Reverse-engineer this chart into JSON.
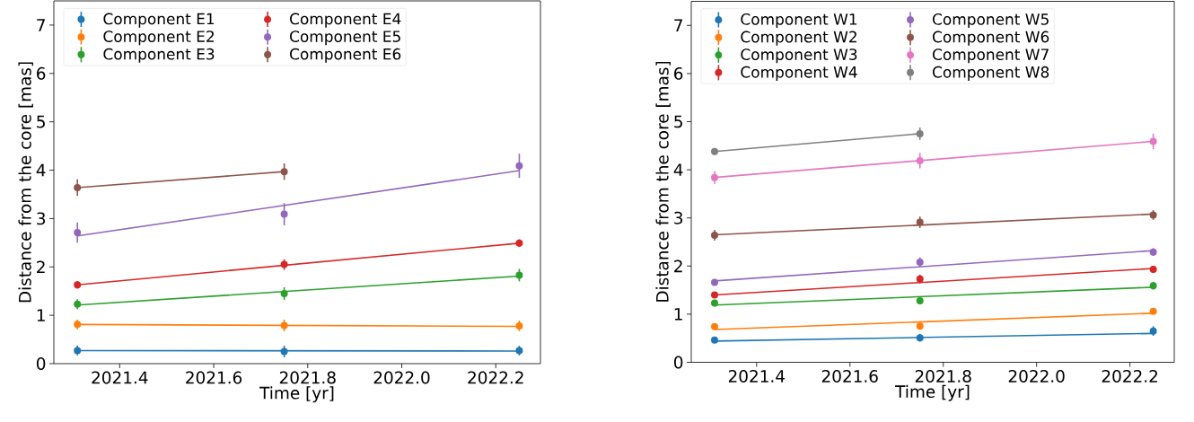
{
  "chart_data": [
    {
      "type": "scatter",
      "xlabel": "Time [yr]",
      "ylabel": "Distance from the core [mas]",
      "xlim": [
        2021.26,
        2022.295
      ],
      "ylim": [
        0,
        7.5
      ],
      "xticks": [
        2021.4,
        2021.6,
        2021.8,
        {
          "value": 2022.0,
          "label": "2022.0"
        },
        2022.2
      ],
      "yticks": [
        0,
        1,
        2,
        3,
        4,
        5,
        6,
        7
      ],
      "legend": "top left",
      "marker": "circle",
      "series": [
        {
          "name": "Component E1",
          "color": "#1f77b4",
          "x": [
            2021.31,
            2021.75,
            2022.25
          ],
          "values": [
            0.27,
            0.25,
            0.27
          ],
          "errors": [
            0.1,
            0.12,
            0.1
          ]
        },
        {
          "name": "Component E2",
          "color": "#ff7f0e",
          "x": [
            2021.31,
            2021.75,
            2022.25
          ],
          "values": [
            0.81,
            0.79,
            0.78
          ],
          "errors": [
            0.1,
            0.12,
            0.11
          ]
        },
        {
          "name": "Component E3",
          "color": "#2ca02c",
          "x": [
            2021.31,
            2021.75,
            2022.25
          ],
          "values": [
            1.23,
            1.45,
            1.83
          ],
          "errors": [
            0.1,
            0.13,
            0.13
          ]
        },
        {
          "name": "Component E4",
          "color": "#d62728",
          "x": [
            2021.31,
            2021.75,
            2022.25
          ],
          "values": [
            1.63,
            2.05,
            2.49
          ],
          "errors": [
            0.08,
            0.11,
            0.08
          ]
        },
        {
          "name": "Component E5",
          "color": "#9467bd",
          "x": [
            2021.31,
            2021.75,
            2022.25
          ],
          "values": [
            2.71,
            3.09,
            4.09
          ],
          "errors": [
            0.21,
            0.23,
            0.25
          ]
        },
        {
          "name": "Component E6",
          "color": "#8c564b",
          "x": [
            2021.31,
            2021.75
          ],
          "values": [
            3.64,
            3.97
          ],
          "errors": [
            0.17,
            0.17
          ]
        },
        {
          "type": "line",
          "marker": "none",
          "color": "#1f77b4",
          "x": [
            2021.31,
            2022.25
          ],
          "values": [
            0.27,
            0.26
          ]
        },
        {
          "type": "line",
          "marker": "none",
          "color": "#ff7f0e",
          "x": [
            2021.31,
            2022.25
          ],
          "values": [
            0.81,
            0.77
          ]
        },
        {
          "type": "line",
          "marker": "none",
          "color": "#2ca02c",
          "x": [
            2021.31,
            2022.25
          ],
          "values": [
            1.21,
            1.81
          ]
        },
        {
          "type": "line",
          "marker": "none",
          "color": "#d62728",
          "x": [
            2021.31,
            2022.25
          ],
          "values": [
            1.63,
            2.49
          ]
        },
        {
          "type": "line",
          "marker": "none",
          "color": "#9467bd",
          "x": [
            2021.31,
            2022.25
          ],
          "values": [
            2.64,
            3.99
          ]
        },
        {
          "type": "line",
          "marker": "none",
          "color": "#8c564b",
          "x": [
            2021.31,
            2021.75
          ],
          "values": [
            3.64,
            3.97
          ]
        }
      ]
    },
    {
      "type": "scatter",
      "xlabel": "Time [yr]",
      "ylabel": "Distance from the core [mas]",
      "xlim": [
        2021.26,
        2022.295
      ],
      "ylim": [
        0,
        7.5
      ],
      "xticks": [
        2021.4,
        2021.6,
        2021.8,
        {
          "value": 2022.0,
          "label": "2022.0"
        },
        2022.2
      ],
      "yticks": [
        0,
        1,
        2,
        3,
        4,
        5,
        6,
        7
      ],
      "legend": "top left",
      "marker": "circle",
      "series": [
        {
          "name": "Component W1",
          "color": "#1f77b4",
          "x": [
            2021.31,
            2021.75,
            2022.25
          ],
          "values": [
            0.46,
            0.51,
            0.65
          ],
          "errors": [
            0.06,
            0.08,
            0.1
          ]
        },
        {
          "name": "Component W2",
          "color": "#ff7f0e",
          "x": [
            2021.31,
            2021.75,
            2022.25
          ],
          "values": [
            0.74,
            0.75,
            1.06
          ],
          "errors": [
            0.06,
            0.07,
            0.06
          ]
        },
        {
          "name": "Component W3",
          "color": "#2ca02c",
          "x": [
            2021.31,
            2021.75,
            2022.25
          ],
          "values": [
            1.23,
            1.28,
            1.59
          ],
          "errors": [
            0.07,
            0.07,
            0.08
          ]
        },
        {
          "name": "Component W4",
          "color": "#d62728",
          "x": [
            2021.31,
            2021.75,
            2022.25
          ],
          "values": [
            1.4,
            1.73,
            1.93
          ],
          "errors": [
            0.06,
            0.09,
            0.07
          ]
        },
        {
          "name": "Component W5",
          "color": "#9467bd",
          "x": [
            2021.31,
            2021.75,
            2022.25
          ],
          "values": [
            1.66,
            2.08,
            2.29
          ],
          "errors": [
            0.06,
            0.1,
            0.08
          ]
        },
        {
          "name": "Component W6",
          "color": "#8c564b",
          "x": [
            2021.31,
            2021.75,
            2022.25
          ],
          "values": [
            2.64,
            2.91,
            3.06
          ],
          "errors": [
            0.11,
            0.12,
            0.1
          ]
        },
        {
          "name": "Component W7",
          "color": "#e377c2",
          "x": [
            2021.31,
            2021.75,
            2022.25
          ],
          "values": [
            3.84,
            4.19,
            4.59
          ],
          "errors": [
            0.13,
            0.16,
            0.16
          ]
        },
        {
          "name": "Component W8",
          "color": "#7f7f7f",
          "x": [
            2021.31,
            2021.75
          ],
          "values": [
            4.38,
            4.75
          ],
          "errors": [
            0.07,
            0.13
          ]
        },
        {
          "type": "line",
          "marker": "none",
          "color": "#1f77b4",
          "x": [
            2021.31,
            2022.25
          ],
          "values": [
            0.44,
            0.6
          ]
        },
        {
          "type": "line",
          "marker": "none",
          "color": "#ff7f0e",
          "x": [
            2021.31,
            2022.25
          ],
          "values": [
            0.68,
            1.02
          ]
        },
        {
          "type": "line",
          "marker": "none",
          "color": "#2ca02c",
          "x": [
            2021.31,
            2022.25
          ],
          "values": [
            1.19,
            1.56
          ]
        },
        {
          "type": "line",
          "marker": "none",
          "color": "#d62728",
          "x": [
            2021.31,
            2022.25
          ],
          "values": [
            1.4,
            1.95
          ]
        },
        {
          "type": "line",
          "marker": "none",
          "color": "#9467bd",
          "x": [
            2021.31,
            2022.25
          ],
          "values": [
            1.69,
            2.32
          ]
        },
        {
          "type": "line",
          "marker": "none",
          "color": "#8c564b",
          "x": [
            2021.31,
            2022.25
          ],
          "values": [
            2.65,
            3.08
          ]
        },
        {
          "type": "line",
          "marker": "none",
          "color": "#e377c2",
          "x": [
            2021.31,
            2022.25
          ],
          "values": [
            3.84,
            4.59
          ]
        },
        {
          "type": "line",
          "marker": "none",
          "color": "#7f7f7f",
          "x": [
            2021.31,
            2021.75
          ],
          "values": [
            4.38,
            4.75
          ]
        }
      ]
    }
  ]
}
